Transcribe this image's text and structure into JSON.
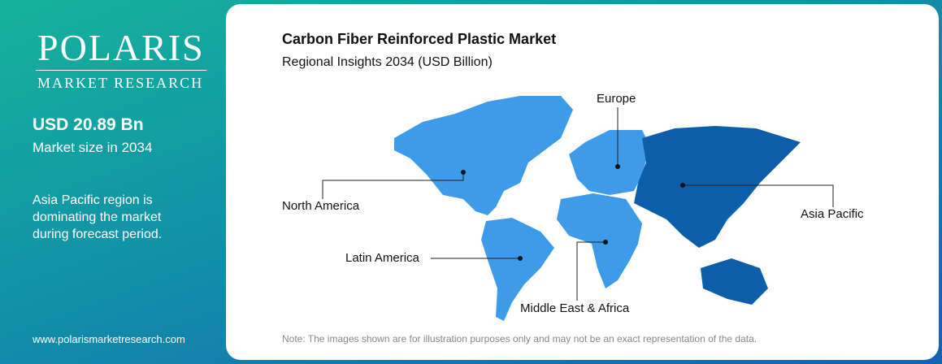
{
  "brand": {
    "name": "POLARIS",
    "tagline": "MARKET RESEARCH"
  },
  "stats": {
    "value": "USD 20.89 Bn",
    "caption": "Market size in 2034",
    "insight": "Asia Pacific region is dominating the market during forecast period."
  },
  "website": "www.polarismarketresearch.com",
  "header": {
    "title": "Carbon Fiber Reinforced Plastic Market",
    "subtitle": "Regional Insights 2034 (USD Billion)"
  },
  "regions": [
    "North America",
    "Europe",
    "Asia Pacific",
    "Latin America",
    "Middle East & Africa"
  ],
  "note": "Note: The images shown are for illustration purposes only and may not be an exact representation of the data."
}
